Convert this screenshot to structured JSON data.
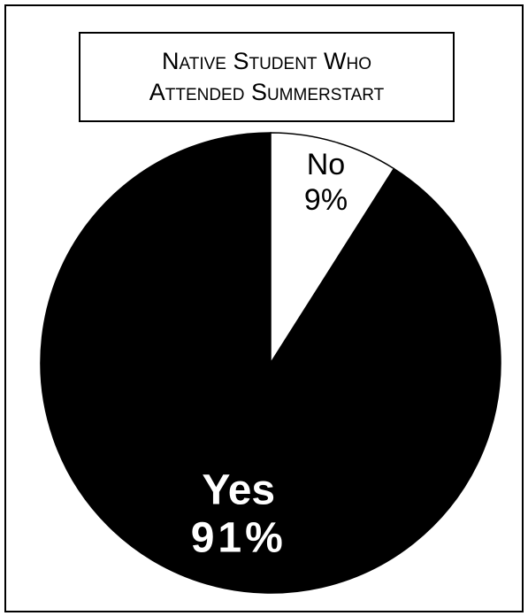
{
  "chart_data": {
    "type": "pie",
    "title_lines": [
      "Native Student Who",
      "Attended Summerstart"
    ],
    "slices": [
      {
        "label": "Yes",
        "value": 91,
        "value_label": "91%",
        "color": "#000000",
        "text_color": "#ffffff"
      },
      {
        "label": "No",
        "value": 9,
        "value_label": "9%",
        "color": "#ffffff",
        "text_color": "#000000"
      }
    ]
  }
}
